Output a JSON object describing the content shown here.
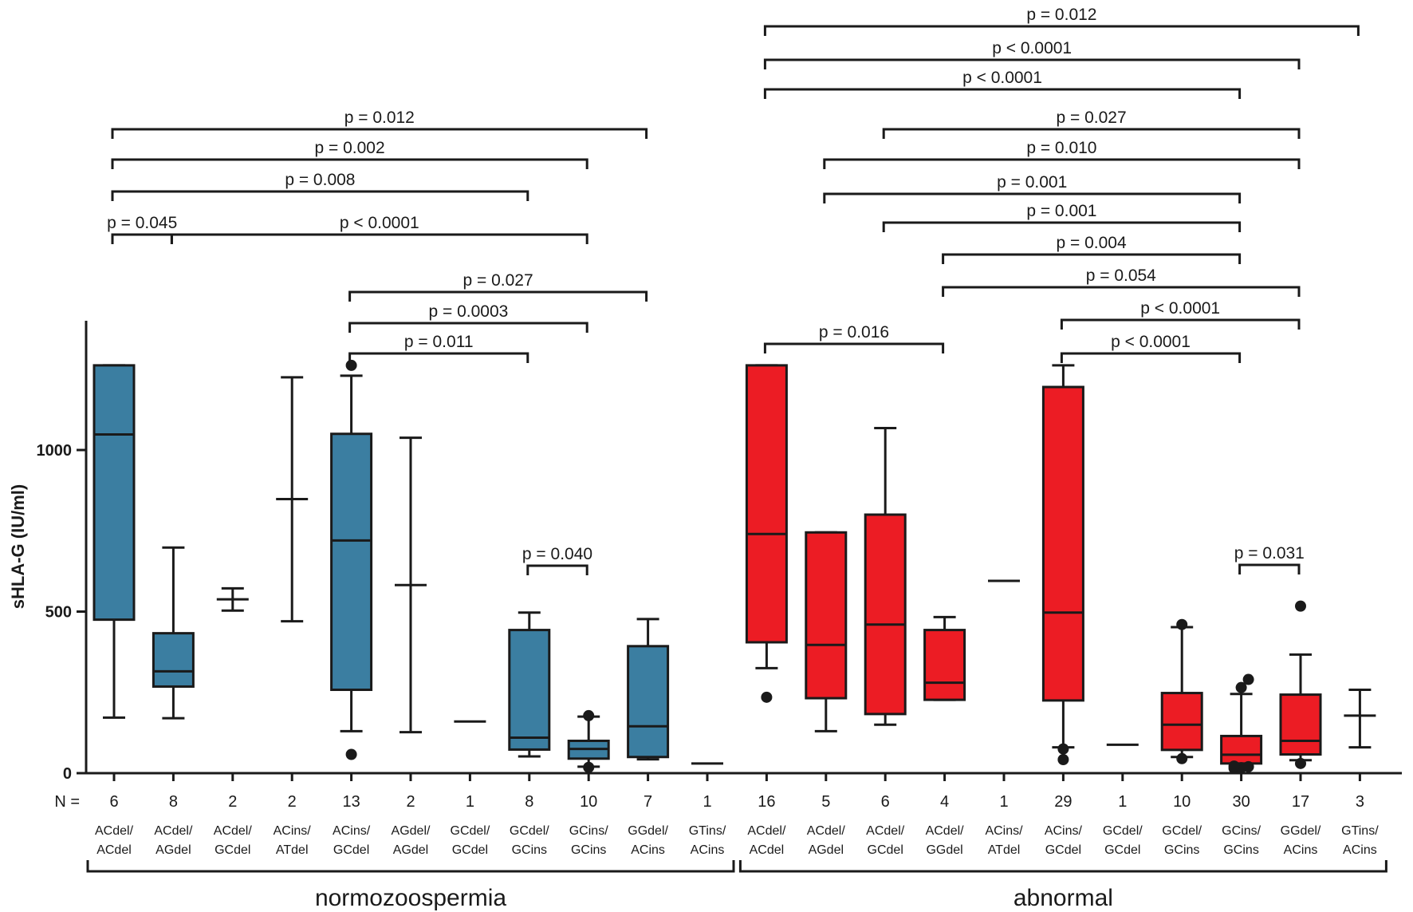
{
  "chart_data": {
    "type": "boxplot",
    "ylabel": "sHLA-G (IU/ml)",
    "ylim": [
      0,
      1400
    ],
    "yticks": [
      0,
      500,
      1000
    ],
    "n_label": "N =",
    "colors": {
      "normozoospermia": "#3b7ea1",
      "abnormal": "#ec1c24",
      "line": "#1a1a1a"
    },
    "groups": [
      {
        "name": "normozoospermia",
        "first": 0,
        "last": 10
      },
      {
        "name": "abnormal",
        "first": 11,
        "last": 21
      }
    ],
    "categories": [
      {
        "g1": "ACdel/",
        "g2": "ACdel",
        "n": "6",
        "group": "normozoospermia",
        "min": 172,
        "q1": 475,
        "median": 1048,
        "q3": 1262,
        "max": 1262,
        "outliers": []
      },
      {
        "g1": "ACdel/",
        "g2": "AGdel",
        "n": "8",
        "group": "normozoospermia",
        "min": 170,
        "q1": 268,
        "median": 315,
        "q3": 433,
        "max": 698,
        "outliers": []
      },
      {
        "g1": "ACdel/",
        "g2": "GCdel",
        "n": "2",
        "group": "normozoospermia",
        "min": 503,
        "q1": null,
        "median": 538,
        "q3": null,
        "max": 572,
        "outliers": []
      },
      {
        "g1": "ACins/",
        "g2": "ATdel",
        "n": "2",
        "group": "normozoospermia",
        "min": 470,
        "q1": null,
        "median": 848,
        "q3": null,
        "max": 1225,
        "outliers": []
      },
      {
        "g1": "ACins/",
        "g2": "GCdel",
        "n": "13",
        "group": "normozoospermia",
        "min": 130,
        "q1": 258,
        "median": 720,
        "q3": 1050,
        "max": 1230,
        "outliers": [
          58,
          1262
        ]
      },
      {
        "g1": "AGdel/",
        "g2": "AGdel",
        "n": "2",
        "group": "normozoospermia",
        "min": 127,
        "q1": null,
        "median": 582,
        "q3": null,
        "max": 1038,
        "outliers": []
      },
      {
        "g1": "GCdel/",
        "g2": "GCdel",
        "n": "1",
        "group": "normozoospermia",
        "min": null,
        "q1": null,
        "median": 160,
        "q3": null,
        "max": null,
        "outliers": []
      },
      {
        "g1": "GCdel/",
        "g2": "GCins",
        "n": "8",
        "group": "normozoospermia",
        "min": 52,
        "q1": 73,
        "median": 110,
        "q3": 443,
        "max": 497,
        "outliers": []
      },
      {
        "g1": "GCins/",
        "g2": "GCins",
        "n": "10",
        "group": "normozoospermia",
        "min": 20,
        "q1": 45,
        "median": 75,
        "q3": 100,
        "max": 175,
        "outliers": [
          18,
          178
        ]
      },
      {
        "g1": "GGdel/",
        "g2": "ACins",
        "n": "7",
        "group": "normozoospermia",
        "min": 43,
        "q1": 50,
        "median": 145,
        "q3": 393,
        "max": 477,
        "outliers": []
      },
      {
        "g1": "GTins/",
        "g2": "ACins",
        "n": "1",
        "group": "normozoospermia",
        "min": null,
        "q1": null,
        "median": 30,
        "q3": null,
        "max": null,
        "outliers": []
      },
      {
        "g1": "ACdel/",
        "g2": "ACdel",
        "n": "16",
        "group": "abnormal",
        "min": 325,
        "q1": 405,
        "median": 740,
        "q3": 1262,
        "max": 1262,
        "outliers": [
          235
        ]
      },
      {
        "g1": "ACdel/",
        "g2": "AGdel",
        "n": "5",
        "group": "abnormal",
        "min": 130,
        "q1": 232,
        "median": 397,
        "q3": 745,
        "max": 745,
        "outliers": []
      },
      {
        "g1": "ACdel/",
        "g2": "GCdel",
        "n": "6",
        "group": "abnormal",
        "min": 150,
        "q1": 183,
        "median": 460,
        "q3": 800,
        "max": 1068,
        "outliers": []
      },
      {
        "g1": "ACdel/",
        "g2": "GGdel",
        "n": "4",
        "group": "abnormal",
        "min": 227,
        "q1": 227,
        "median": 280,
        "q3": 443,
        "max": 483,
        "outliers": []
      },
      {
        "g1": "ACins/",
        "g2": "ATdel",
        "n": "1",
        "group": "abnormal",
        "min": null,
        "q1": null,
        "median": 595,
        "q3": null,
        "max": null,
        "outliers": []
      },
      {
        "g1": "ACins/",
        "g2": "GCdel",
        "n": "29",
        "group": "abnormal",
        "min": 80,
        "q1": 225,
        "median": 497,
        "q3": 1195,
        "max": 1262,
        "outliers": [
          42,
          75
        ]
      },
      {
        "g1": "GCdel/",
        "g2": "GCdel",
        "n": "1",
        "group": "abnormal",
        "min": null,
        "q1": null,
        "median": 88,
        "q3": null,
        "max": null,
        "outliers": []
      },
      {
        "g1": "GCdel/",
        "g2": "GCins",
        "n": "10",
        "group": "abnormal",
        "min": 50,
        "q1": 72,
        "median": 150,
        "q3": 248,
        "max": 452,
        "outliers": [
          45,
          460
        ]
      },
      {
        "g1": "GCins/",
        "g2": "GCins",
        "n": "30",
        "group": "abnormal",
        "min": 20,
        "q1": 30,
        "median": 57,
        "q3": 115,
        "max": 245,
        "outliers": [
          15,
          17,
          20,
          22,
          265,
          290
        ]
      },
      {
        "g1": "GGdel/",
        "g2": "ACins",
        "n": "17",
        "group": "abnormal",
        "min": 40,
        "q1": 58,
        "median": 100,
        "q3": 243,
        "max": 367,
        "outliers": [
          30,
          517
        ]
      },
      {
        "g1": "GTins/",
        "g2": "ACins",
        "n": "3",
        "group": "abnormal",
        "min": 80,
        "q1": null,
        "median": 178,
        "q3": null,
        "max": 258,
        "outliers": []
      }
    ],
    "comparisons": [
      {
        "from": 0,
        "to": 1,
        "label": "p = 0.045"
      },
      {
        "from": 1,
        "to": 8,
        "label": "p < 0.0001"
      },
      {
        "from": 0,
        "to": 7,
        "label": "p = 0.008"
      },
      {
        "from": 0,
        "to": 8,
        "label": "p = 0.002"
      },
      {
        "from": 0,
        "to": 9,
        "label": "p = 0.012"
      },
      {
        "from": 4,
        "to": 7,
        "label": "p = 0.011"
      },
      {
        "from": 4,
        "to": 8,
        "label": "p = 0.0003"
      },
      {
        "from": 4,
        "to": 9,
        "label": "p = 0.027"
      },
      {
        "from": 7,
        "to": 8,
        "label": "p = 0.040"
      },
      {
        "from": 11,
        "to": 14,
        "label": "p = 0.016"
      },
      {
        "from": 16,
        "to": 19,
        "label": "p < 0.0001"
      },
      {
        "from": 16,
        "to": 20,
        "label": "p < 0.0001"
      },
      {
        "from": 14,
        "to": 20,
        "label": "p = 0.054"
      },
      {
        "from": 14,
        "to": 19,
        "label": "p = 0.004"
      },
      {
        "from": 13,
        "to": 19,
        "label": "p = 0.001"
      },
      {
        "from": 12,
        "to": 19,
        "label": "p = 0.001"
      },
      {
        "from": 12,
        "to": 20,
        "label": "p = 0.010"
      },
      {
        "from": 13,
        "to": 20,
        "label": "p = 0.027"
      },
      {
        "from": 11,
        "to": 19,
        "label": "p < 0.0001"
      },
      {
        "from": 11,
        "to": 20,
        "label": "p < 0.0001"
      },
      {
        "from": 11,
        "to": 21,
        "label": "p = 0.012"
      },
      {
        "from": 19,
        "to": 20,
        "label": "p = 0.031"
      }
    ]
  }
}
